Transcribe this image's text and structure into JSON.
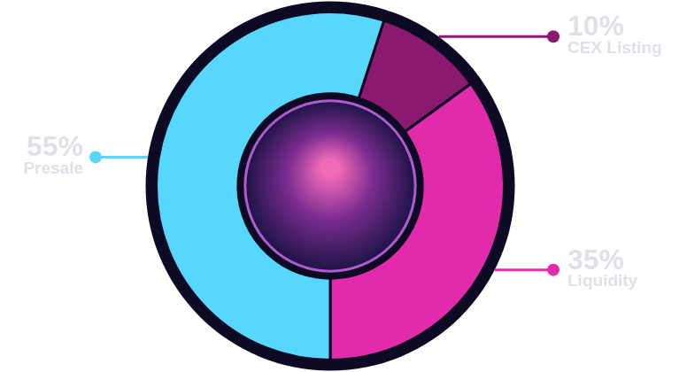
{
  "chart_data": {
    "type": "doughnut",
    "categories": [
      "CEX Listing",
      "Liquidity",
      "Presale"
    ],
    "values": [
      10,
      35,
      55
    ],
    "value_labels": [
      "10%",
      "35%",
      "55%"
    ],
    "colors": [
      "#8b1a6f",
      "#e12bab",
      "#57d7fc"
    ],
    "data_labels": true
  }
}
